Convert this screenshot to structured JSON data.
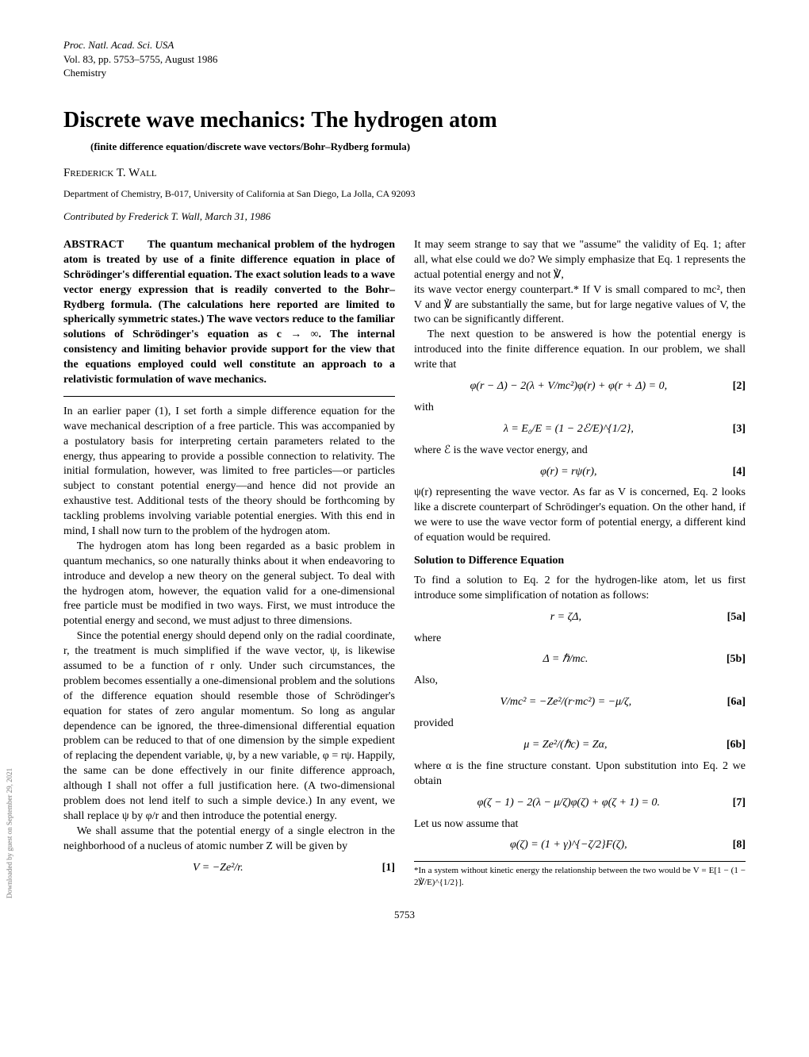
{
  "journal": {
    "line1": "Proc. Natl. Acad. Sci. USA",
    "line2": "Vol. 83, pp. 5753–5755, August 1986",
    "line3": "Chemistry"
  },
  "title": "Discrete wave mechanics: The hydrogen atom",
  "subtitle": "(finite difference equation/discrete wave vectors/Bohr–Rydberg formula)",
  "author": "Frederick T. Wall",
  "affiliation": "Department of Chemistry, B-017, University of California at San Diego, La Jolla, CA 92093",
  "contributed": "Contributed by Frederick T. Wall, March 31, 1986",
  "abstract_label": "ABSTRACT",
  "abstract": "The quantum mechanical problem of the hydrogen atom is treated by use of a finite difference equation in place of Schrödinger's differential equation. The exact solution leads to a wave vector energy expression that is readily converted to the Bohr–Rydberg formula. (The calculations here reported are limited to spherically symmetric states.) The wave vectors reduce to the familiar solutions of Schrödinger's equation as c → ∞. The internal consistency and limiting behavior provide support for the view that the equations employed could well constitute an approach to a relativistic formulation of wave mechanics.",
  "body": {
    "p1": "In an earlier paper (1), I set forth a simple difference equation for the wave mechanical description of a free particle. This was accompanied by a postulatory basis for interpreting certain parameters related to the energy, thus appearing to provide a possible connection to relativity. The initial formulation, however, was limited to free particles—or particles subject to constant potential energy—and hence did not provide an exhaustive test. Additional tests of the theory should be forthcoming by tackling problems involving variable potential energies. With this end in mind, I shall now turn to the problem of the hydrogen atom.",
    "p2": "The hydrogen atom has long been regarded as a basic problem in quantum mechanics, so one naturally thinks about it when endeavoring to introduce and develop a new theory on the general subject. To deal with the hydrogen atom, however, the equation valid for a one-dimensional free particle must be modified in two ways. First, we must introduce the potential energy and second, we must adjust to three dimensions.",
    "p3": "Since the potential energy should depend only on the radial coordinate, r, the treatment is much simplified if the wave vector, ψ, is likewise assumed to be a function of r only. Under such circumstances, the problem becomes essentially a one-dimensional problem and the solutions of the difference equation should resemble those of Schrödinger's equation for states of zero angular momentum. So long as angular dependence can be ignored, the three-dimensional differential equation problem can be reduced to that of one dimension by the simple expedient of replacing the dependent variable, ψ, by a new variable, φ = rψ. Happily, the same can be done effectively in our finite difference approach, although I shall not offer a full justification here. (A two-dimensional problem does not lend itelf to such a simple device.) In any event, we shall replace ψ by φ/r and then introduce the potential energy.",
    "p4": "We shall assume that the potential energy of a single electron in the neighborhood of a nucleus of atomic number Z will be given by",
    "p5": "It may seem strange to say that we \"assume\" the validity of Eq. 1; after all, what else could we do? We simply emphasize that Eq. 1 represents the actual potential energy and not ℣,",
    "p6": "its wave vector energy counterpart.* If V is small compared to mc², then V and ℣ are substantially the same, but for large negative values of V, the two can be significantly different.",
    "p7": "The next question to be answered is how the potential energy is introduced into the finite difference equation. In our problem, we shall write that",
    "p8": "with",
    "p9": "where ℰ is the wave vector energy, and",
    "p10": "ψ(r) representing the wave vector. As far as V is concerned, Eq. 2 looks like a discrete counterpart of Schrödinger's equation. On the other hand, if we were to use the wave vector form of potential energy, a different kind of equation would be required.",
    "section1": "Solution to Difference Equation",
    "p11": "To find a solution to Eq. 2 for the hydrogen-like atom, let us first introduce some simplification of notation as follows:",
    "p12": "where",
    "p13": "Also,",
    "p14": "provided",
    "p15": "where α is the fine structure constant. Upon substitution into Eq. 2 we obtain",
    "p16": "Let us now assume that"
  },
  "equations": {
    "eq1": {
      "math": "V = −Ze²/r.",
      "num": "[1]"
    },
    "eq2": {
      "math": "φ(r − Δ) − 2(λ + V/mc²)φ(r) + φ(r + Δ) = 0,",
      "num": "[2]"
    },
    "eq3": {
      "math": "λ = E₀/E = (1 − 2ℰ/E)^{1/2},",
      "num": "[3]"
    },
    "eq4": {
      "math": "φ(r) = rψ(r),",
      "num": "[4]"
    },
    "eq5a": {
      "math": "r = ζΔ,",
      "num": "[5a]"
    },
    "eq5b": {
      "math": "Δ = ℏ/mc.",
      "num": "[5b]"
    },
    "eq6a": {
      "math": "V/mc² = −Ze²/(r·mc²) = −μ/ζ,",
      "num": "[6a]"
    },
    "eq6b": {
      "math": "μ = Ze²/(ℏc) = Zα,",
      "num": "[6b]"
    },
    "eq7": {
      "math": "φ(ζ − 1) − 2(λ − μ/ζ)φ(ζ) + φ(ζ + 1) = 0.",
      "num": "[7]"
    },
    "eq8": {
      "math": "φ(ζ) = (1 + γ)^{−ζ/2}F(ζ),",
      "num": "[8]"
    }
  },
  "footnote": "*In a system without kinetic energy the relationship between the two would be V = E[1 − (1 − 2℣/E)^{1/2}].",
  "pagenum": "5753",
  "sidelabel": "Downloaded by guest on September 29, 2021"
}
